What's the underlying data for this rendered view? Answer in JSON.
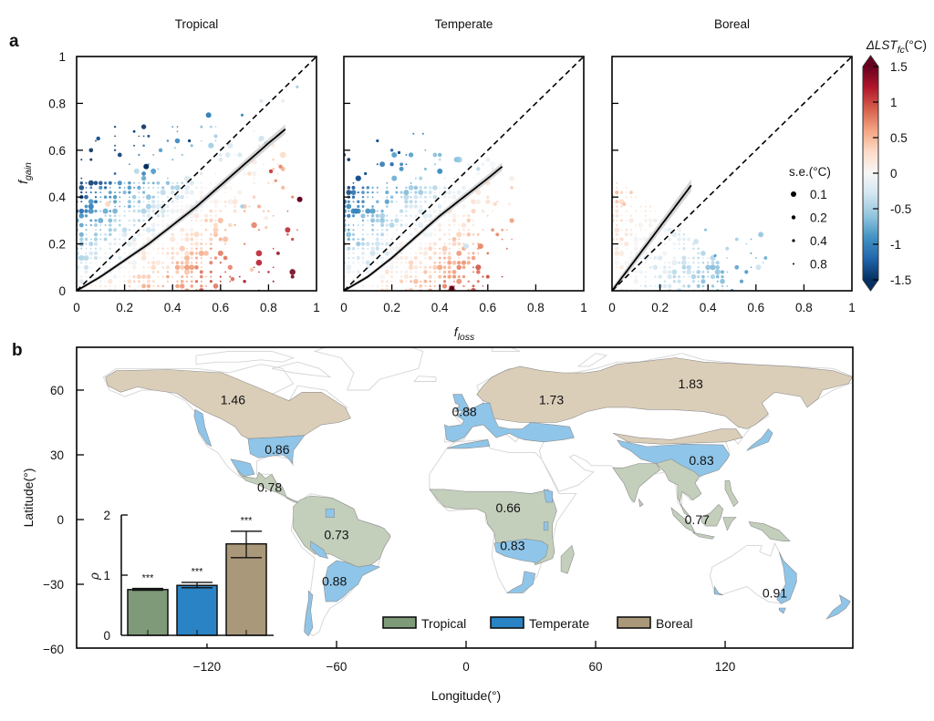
{
  "figure": {
    "panel_labels": {
      "a": "a",
      "b": "b"
    },
    "shared_xlabel": {
      "base": "f",
      "sub": "loss"
    },
    "shared_ylabel": {
      "base": "f",
      "sub": "gain"
    }
  },
  "chart_data": [
    {
      "type": "scatter",
      "panel": "a",
      "title": "Tropical",
      "xlabel": "f_loss",
      "ylabel": "f_gain",
      "xlim": [
        0,
        1
      ],
      "ylim": [
        0,
        1
      ],
      "xticks": [
        0,
        0.2,
        0.4,
        0.6,
        0.8,
        1
      ],
      "xtick_labels": [
        "0",
        "0.2",
        "0.4",
        "0.6",
        "0.8",
        "1"
      ],
      "yticks": [
        0,
        0.2,
        0.4,
        0.6,
        0.8,
        1
      ],
      "ytick_labels": [
        "0",
        "0.2",
        "0.4",
        "0.6",
        "0.8",
        "1"
      ],
      "show_ytick_labels": true,
      "reference_line": "1:1 dashed",
      "fit_line": [
        [
          0,
          0
        ],
        [
          0.1,
          0.06
        ],
        [
          0.2,
          0.13
        ],
        [
          0.3,
          0.2
        ],
        [
          0.4,
          0.28
        ],
        [
          0.5,
          0.36
        ],
        [
          0.6,
          0.45
        ],
        [
          0.7,
          0.54
        ],
        [
          0.8,
          0.63
        ],
        [
          0.87,
          0.69
        ]
      ],
      "fit_ci_halfwidth": 0.016,
      "cloud": {
        "shape": "rect",
        "step": 0.02,
        "x_max": 0.72,
        "y_max": 0.46,
        "x_fade": 0.5,
        "density": 0.8,
        "gain_above": 3.2,
        "gain_below": 2.3,
        "above_sign": -1,
        "noise": 0.35,
        "sparse": {
          "count": 110,
          "x_max": 0.92,
          "y_max": 0.72
        }
      },
      "points": [
        [
          0.93,
          0.39,
          1.5,
          0.1
        ],
        [
          0.55,
          0.75,
          -1.0,
          0.1
        ],
        [
          0.09,
          0.65,
          -1.3,
          0.2
        ],
        [
          0.29,
          0.53,
          -1.5,
          0.1
        ],
        [
          0.69,
          0.75,
          -0.9,
          0.4
        ],
        [
          0.77,
          0.81,
          -0.2,
          0.2
        ],
        [
          0.86,
          0.81,
          -0.1,
          0.2
        ],
        [
          0.92,
          0.87,
          -0.5,
          0.4
        ],
        [
          0.81,
          0.51,
          1.0,
          0.2
        ],
        [
          0.85,
          0.53,
          0.7,
          0.2
        ],
        [
          0.83,
          0.47,
          0.7,
          0.4
        ],
        [
          0.79,
          0.63,
          -0.6,
          0.2
        ],
        [
          0.77,
          0.65,
          -0.3,
          0.1
        ],
        [
          0.74,
          0.55,
          0.1,
          0.1
        ],
        [
          0.63,
          0.58,
          -0.2,
          0.1
        ],
        [
          0.35,
          0.6,
          -0.8,
          0.2
        ],
        [
          0.47,
          0.64,
          -1.4,
          0.4
        ],
        [
          0.41,
          0.61,
          -0.6,
          0.8
        ],
        [
          0.25,
          0.51,
          -0.4,
          0.1
        ],
        [
          0.32,
          0.51,
          -0.8,
          0.1
        ],
        [
          0.73,
          0.09,
          0.4,
          0.2
        ],
        [
          0.79,
          0.27,
          0.4,
          0.4
        ],
        [
          0.79,
          0.31,
          0.1,
          0.2
        ],
        [
          0.65,
          0.05,
          0.8,
          0.2
        ],
        [
          0.69,
          0.36,
          -0.5,
          0.2
        ],
        [
          0.13,
          0.37,
          0.3,
          0.1
        ]
      ]
    },
    {
      "type": "scatter",
      "panel": "a",
      "title": "Temperate",
      "xlabel": "f_loss",
      "ylabel": "f_gain",
      "xlim": [
        0,
        1
      ],
      "ylim": [
        0,
        1
      ],
      "xticks": [
        0,
        0.2,
        0.4,
        0.6,
        0.8,
        1
      ],
      "xtick_labels": [
        "0",
        "0.2",
        "0.4",
        "0.6",
        "0.8",
        "1"
      ],
      "yticks": [
        0,
        0.2,
        0.4,
        0.6,
        0.8,
        1
      ],
      "ytick_labels": [
        "0",
        "0.2",
        "0.4",
        "0.6",
        "0.8",
        "1"
      ],
      "show_ytick_labels": false,
      "reference_line": "1:1 dashed",
      "fit_line": [
        [
          0,
          0
        ],
        [
          0.1,
          0.06
        ],
        [
          0.2,
          0.14
        ],
        [
          0.3,
          0.23
        ],
        [
          0.4,
          0.32
        ],
        [
          0.5,
          0.4
        ],
        [
          0.6,
          0.48
        ],
        [
          0.66,
          0.53
        ]
      ],
      "fit_ci_halfwidth": 0.016,
      "cloud": {
        "shape": "rect",
        "step": 0.02,
        "x_max": 0.62,
        "y_max": 0.44,
        "x_fade": 0.45,
        "density": 0.8,
        "gain_above": 3.0,
        "gain_below": 2.3,
        "above_sign": -1,
        "noise": 0.3,
        "sparse": {
          "count": 55,
          "x_max": 0.7,
          "y_max": 0.6
        }
      },
      "points": [
        [
          0.47,
          0.56,
          -0.6,
          0.1
        ],
        [
          0.21,
          0.58,
          -0.8,
          0.1
        ],
        [
          0.23,
          0.59,
          -1.4,
          0.4
        ],
        [
          0.14,
          0.64,
          -1.3,
          0.4
        ],
        [
          0.29,
          0.67,
          -1.0,
          0.8
        ],
        [
          0.33,
          0.67,
          -1.0,
          0.8
        ],
        [
          0.05,
          0.34,
          -1.0,
          0.1
        ],
        [
          0.21,
          0.48,
          -0.7,
          0.1
        ],
        [
          0.4,
          0.51,
          -0.9,
          0.1
        ],
        [
          0.51,
          0.19,
          -0.3,
          0.1
        ],
        [
          0.57,
          0.19,
          0.7,
          0.1
        ],
        [
          0.45,
          0.01,
          1.5,
          0.1
        ],
        [
          0.56,
          0.52,
          -0.4,
          0.2
        ],
        [
          0.63,
          0.37,
          0.3,
          0.2
        ],
        [
          0.69,
          0.37,
          0.1,
          0.4
        ],
        [
          0.09,
          0.5,
          -1.3,
          0.4
        ]
      ]
    },
    {
      "type": "scatter",
      "panel": "a",
      "title": "Boreal",
      "xlabel": "f_loss",
      "ylabel": "f_gain",
      "xlim": [
        0,
        1
      ],
      "ylim": [
        0,
        1
      ],
      "xticks": [
        0,
        0.2,
        0.4,
        0.6,
        0.8,
        1
      ],
      "xtick_labels": [
        "0",
        "0.2",
        "0.4",
        "0.6",
        "0.8",
        "1"
      ],
      "yticks": [
        0,
        0.2,
        0.4,
        0.6,
        0.8,
        1
      ],
      "ytick_labels": [
        "0",
        "0.2",
        "0.4",
        "0.6",
        "0.8",
        "1"
      ],
      "show_ytick_labels": false,
      "reference_line": "1:1 dashed",
      "fit_line": [
        [
          0,
          0
        ],
        [
          0.33,
          0.45
        ]
      ],
      "fit_ci_halfwidth": 0.035,
      "cloud": {
        "shape": "triangle",
        "step": 0.02,
        "tri_intercept": 0.5,
        "tri_slope": 0.85,
        "x_max": 0.56,
        "y_max": 0.5,
        "x_fade": 0.4,
        "density": 0.7,
        "gain_above": 1.0,
        "gain_below": 1.2,
        "above_sign": 1,
        "noise": 0.25,
        "sparse": {
          "count": 14,
          "x_max": 0.65,
          "y_max": 0.25
        }
      },
      "points": [
        [
          0.35,
          0.21,
          -0.3,
          0.1
        ],
        [
          0.61,
          0.1,
          -0.3,
          0.1
        ],
        [
          0.39,
          0.26,
          -0.6,
          0.4
        ],
        [
          0.05,
          0.37,
          0.4,
          0.2
        ],
        [
          0.43,
          0.15,
          -0.8,
          0.4
        ],
        [
          0.63,
          0.12,
          -0.4,
          0.8
        ]
      ]
    },
    {
      "type": "colorbar",
      "title": {
        "base": "ΔLST",
        "sub": "fc",
        "suffix": "(°C)"
      },
      "range": [
        -1.5,
        1.5
      ],
      "extend": "both",
      "ticks": [
        1.5,
        1,
        0.5,
        0,
        -0.5,
        -1,
        -1.5
      ],
      "tick_labels": [
        "1.5",
        "1",
        "0.5",
        "0",
        "-0.5",
        "-1",
        "-1.5"
      ],
      "colormap": "RdBu_r",
      "colormap_stops": [
        "#053061",
        "#2166ac",
        "#4393c3",
        "#92c5de",
        "#d1e5f0",
        "#f7f7f7",
        "#fddbc7",
        "#f4a582",
        "#d6604d",
        "#b2182b",
        "#67001f"
      ]
    },
    {
      "type": "size-legend",
      "title": "s.e.(°C)",
      "entries": [
        {
          "label": "0.1",
          "se": 0.1
        },
        {
          "label": "0.2",
          "se": 0.2
        },
        {
          "label": "0.4",
          "se": 0.4
        },
        {
          "label": "0.8",
          "se": 0.8
        }
      ]
    },
    {
      "type": "map",
      "panel": "b",
      "xlabel": "Longitude(°)",
      "ylabel": "Latitude(°)",
      "xlim": [
        -180,
        180
      ],
      "ylim": [
        -60,
        80
      ],
      "xticks": [
        -120,
        -60,
        0,
        60,
        120
      ],
      "xtick_labels": [
        "−120",
        "−60",
        "0",
        "60",
        "120"
      ],
      "yticks": [
        -60,
        -30,
        0,
        30,
        60
      ],
      "ytick_labels": [
        "−60",
        "−30",
        "0",
        "30",
        "60"
      ],
      "fill_colors": {
        "Tropical": "#c3cfbb",
        "Temperate": "#8fc5e9",
        "Boreal": "#dbceb9"
      },
      "outline_color": "#d4d4d4",
      "legend": [
        {
          "label": "Tropical",
          "color": "#7f9a78"
        },
        {
          "label": "Temperate",
          "color": "#2a83c4"
        },
        {
          "label": "Boreal",
          "color": "#aa987a"
        }
      ],
      "region_values": [
        {
          "biome": "Boreal",
          "value": "1.46",
          "lon": -108,
          "lat": 55.5
        },
        {
          "biome": "Temperate",
          "value": "0.86",
          "lon": -87.5,
          "lat": 32.5
        },
        {
          "biome": "Tropical",
          "value": "0.78",
          "lon": -91,
          "lat": 15
        },
        {
          "biome": "Tropical",
          "value": "0.73",
          "lon": -60,
          "lat": -7
        },
        {
          "biome": "Temperate",
          "value": "0.88",
          "lon": -61,
          "lat": -28.5
        },
        {
          "biome": "Temperate",
          "value": "0.88",
          "lon": -0.8,
          "lat": 50
        },
        {
          "biome": "Boreal",
          "value": "1.73",
          "lon": 39.5,
          "lat": 55.5
        },
        {
          "biome": "Boreal",
          "value": "1.83",
          "lon": 104,
          "lat": 63
        },
        {
          "biome": "Tropical",
          "value": "0.66",
          "lon": 19.5,
          "lat": 5.5
        },
        {
          "biome": "Temperate",
          "value": "0.83",
          "lon": 21.5,
          "lat": -12
        },
        {
          "biome": "Temperate",
          "value": "0.83",
          "lon": 109,
          "lat": 27.5
        },
        {
          "biome": "Tropical",
          "value": "0.77",
          "lon": 107,
          "lat": 0
        },
        {
          "biome": "Temperate",
          "value": "0.91",
          "lon": 143,
          "lat": -34
        }
      ]
    },
    {
      "type": "bar",
      "panel": "b-inset",
      "title": "",
      "xlabel": "",
      "ylabel": "ρ",
      "categories": [
        "Tropical",
        "Temperate",
        "Boreal"
      ],
      "values": [
        0.76,
        0.83,
        1.52
      ],
      "error_ranges": [
        [
          0.75,
          0.78
        ],
        [
          0.79,
          0.88
        ],
        [
          1.29,
          1.73
        ]
      ],
      "significance": [
        "***",
        "***",
        "***"
      ],
      "colors": [
        "#7f9a78",
        "#2a83c4",
        "#aa987a"
      ],
      "ylim": [
        0,
        2
      ],
      "yticks": [
        0,
        1,
        2
      ],
      "ytick_labels": [
        "0",
        "1",
        "2"
      ]
    }
  ]
}
